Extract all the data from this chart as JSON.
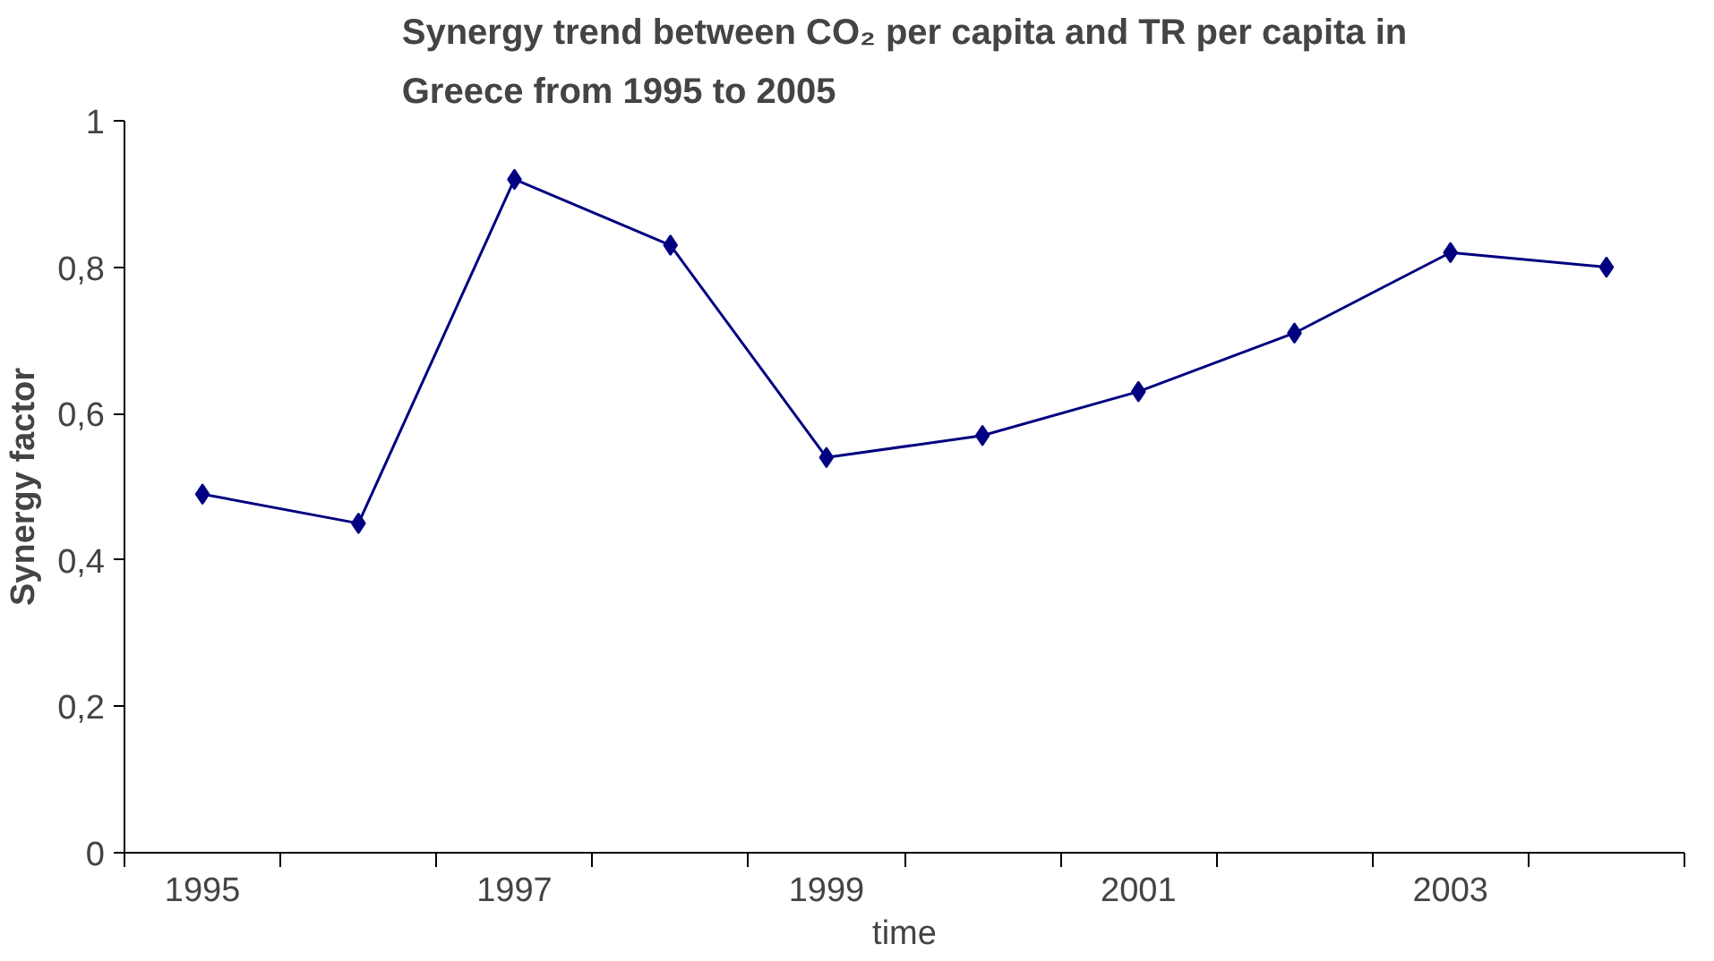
{
  "chart_data": {
    "type": "line",
    "title": "Synergy trend between CO₂ per capita and TR per capita in\nGreece from 1995 to 2005",
    "xlabel": "time",
    "ylabel": "Synergy factor",
    "categories": [
      "1995",
      null,
      "1997",
      null,
      "1999",
      null,
      "2001",
      null,
      "2003",
      null
    ],
    "series": [
      {
        "color": "#000080",
        "values": [
          0.49,
          0.45,
          0.92,
          0.83,
          0.54,
          0.57,
          0.63,
          0.71,
          0.82,
          0.8
        ]
      }
    ],
    "ylim": [
      0,
      1
    ],
    "yticks": [
      0,
      {
        "value": 0.2,
        "label": "0,2"
      },
      {
        "value": 0.4,
        "label": "0,4"
      },
      {
        "value": 0.6,
        "label": "0,6"
      },
      {
        "value": 0.8,
        "label": "0,8"
      },
      1
    ],
    "grid": false,
    "marker": "diamond",
    "line_style": "solid"
  }
}
